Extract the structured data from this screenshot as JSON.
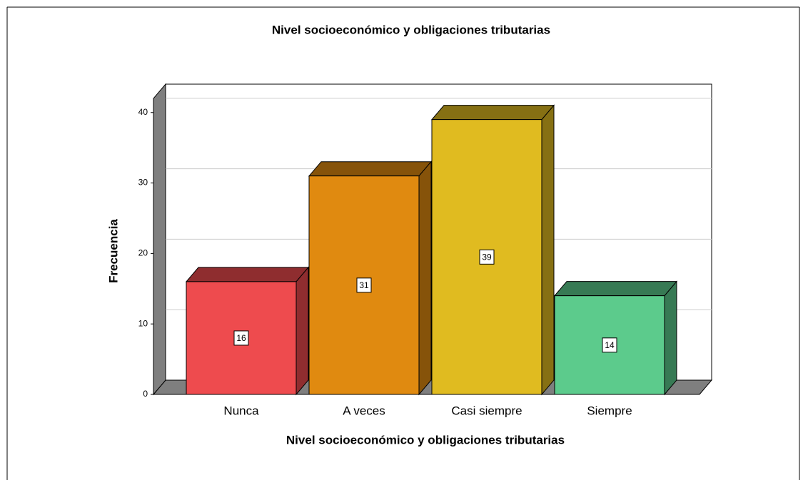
{
  "chart_data": {
    "type": "bar3d",
    "title": "Nivel socioeconómico y obligaciones tributarias",
    "x_label": "Nivel socioeconómico y obligaciones tributarias",
    "y_label": "Frecuencia",
    "categories": [
      "Nunca",
      "A veces",
      "Casi siempre",
      "Siempre"
    ],
    "values": [
      16,
      31,
      39,
      14
    ],
    "colors": [
      "#ee4b4e",
      "#e08a10",
      "#e0bb20",
      "#5ccb8c"
    ],
    "ylim": [
      0,
      42
    ],
    "yticks": [
      0,
      10,
      20,
      30,
      40
    ],
    "grid": true
  }
}
